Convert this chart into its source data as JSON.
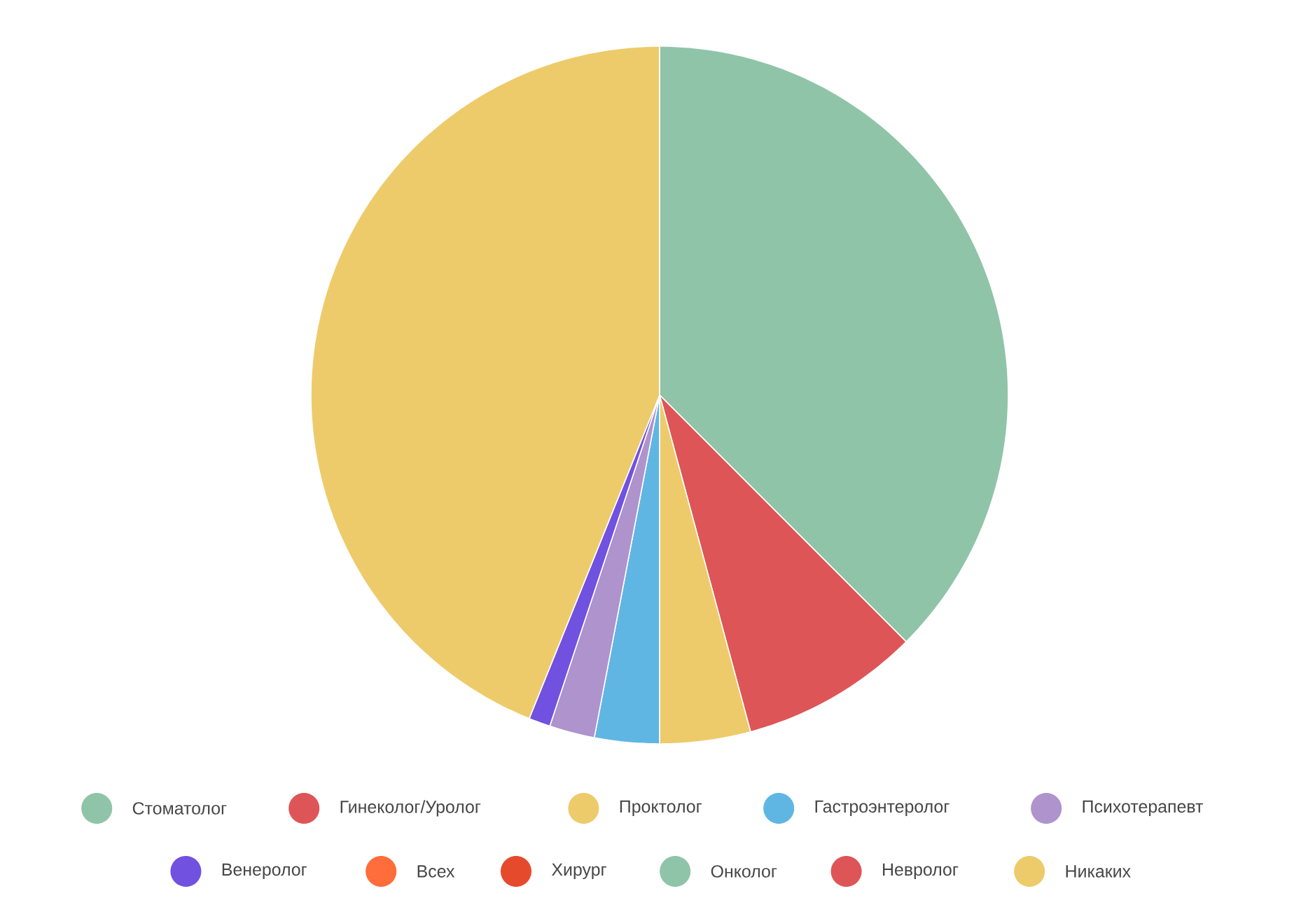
{
  "chart_data": {
    "type": "pie",
    "categories": [
      "Стоматолог",
      "Гинеколог/Уролог",
      "Проктолог",
      "Гастроэнтеролог",
      "Психотерапевт",
      "Венеролог",
      "Всех",
      "Хирург",
      "Онколог",
      "Невролог",
      "Никаких"
    ],
    "values": [
      37.5,
      8.3,
      4.2,
      3.0,
      2.1,
      1.0,
      null,
      null,
      null,
      null,
      43.9
    ],
    "colors": [
      "#8fc4a8",
      "#de5557",
      "#eecb6a",
      "#60b6e3",
      "#ae93cc",
      "#7151e0",
      "#ff6d3b",
      "#e64a2d",
      "#8fc4a8",
      "#de5557",
      "#eecb6a"
    ],
    "legend": "bottom"
  }
}
